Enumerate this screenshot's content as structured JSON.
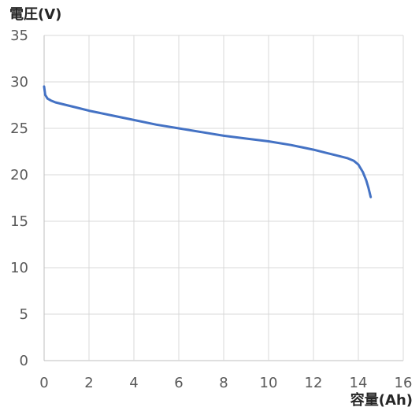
{
  "chart_data": {
    "type": "line",
    "title": "",
    "xlabel": "容量(Ah)",
    "ylabel": "電圧(V)",
    "xlim": [
      0,
      16
    ],
    "ylim": [
      0,
      35
    ],
    "x_ticks": [
      0,
      2,
      4,
      6,
      8,
      10,
      12,
      14,
      16
    ],
    "y_ticks": [
      0,
      5,
      10,
      15,
      20,
      25,
      30,
      35
    ],
    "grid": true,
    "legend": "none",
    "series": [
      {
        "color": "#4472c4",
        "x": [
          0,
          0.05,
          0.15,
          0.3,
          0.5,
          1,
          1.5,
          2,
          3,
          4,
          5,
          6,
          7,
          8,
          9,
          10,
          11,
          12,
          12.5,
          13,
          13.5,
          13.8,
          14,
          14.2,
          14.35,
          14.45,
          14.55
        ],
        "y": [
          29.5,
          28.6,
          28.2,
          28.0,
          27.8,
          27.5,
          27.2,
          26.9,
          26.4,
          25.9,
          25.4,
          25.0,
          24.6,
          24.2,
          23.9,
          23.6,
          23.2,
          22.7,
          22.4,
          22.1,
          21.8,
          21.5,
          21.1,
          20.3,
          19.4,
          18.6,
          17.6
        ]
      }
    ]
  }
}
